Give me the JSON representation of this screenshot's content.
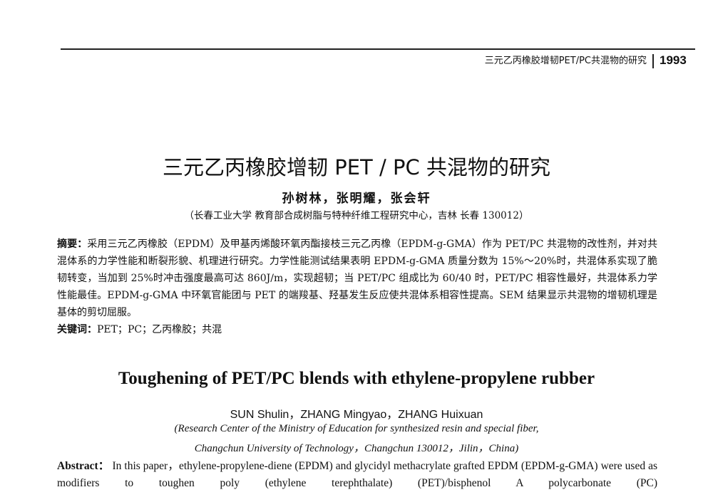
{
  "header": {
    "running_title": "三元乙丙橡胶增韧PET/PC共混物的研究",
    "page_number": "1993"
  },
  "zh": {
    "title": "三元乙丙橡胶增韧 PET / PC 共混物的研究",
    "authors": "孙树林，张明耀，张会轩",
    "affiliation": "（长春工业大学 教育部合成树脂与特种纤维工程研究中心，吉林 长春 130012）",
    "abstract_label": "摘要：",
    "abstract": "采用三元乙丙橡胶（EPDM）及甲基丙烯酸环氧丙酯接枝三元乙丙橡（EPDM-g-GMA）作为 PET/PC 共混物的改性剂，并对共混体系的力学性能和断裂形貌、机理进行研究。力学性能测试结果表明 EPDM-g-GMA 质量分数为 15%～20%时，共混体系实现了脆韧转变，当加到 25%时冲击强度最高可达 860J/m，实现超韧；当 PET/PC 组成比为 60/40 时，PET/PC 相容性最好，共混体系力学性能最佳。EPDM-g-GMA 中环氧官能团与 PET 的端羧基、羟基发生反应使共混体系相容性提高。SEM 结果显示共混物的增韧机理是基体的剪切屈服。",
    "keywords_label": "关键词：",
    "keywords": "PET；PC；乙丙橡胶；共混"
  },
  "en": {
    "title": "Toughening of PET/PC blends with ethylene-propylene rubber",
    "authors": "SUN Shulin，ZHANG Mingyao，ZHANG Huixuan",
    "affiliation_1": "(Research Center of the Ministry of Education for synthesized resin and special fiber,",
    "affiliation_2": "Changchun University of Technology，Changchun 130012，Jilin，China)",
    "abstract_label": "Abstract：",
    "abstract": "In this paper，ethylene-propylene-diene (EPDM) and glycidyl methacrylate grafted EPDM (EPDM-g-GMA) were used as modifiers to toughen poly (ethylene terephthalate) (PET)/bisphenol A polycarbonate (PC)"
  }
}
